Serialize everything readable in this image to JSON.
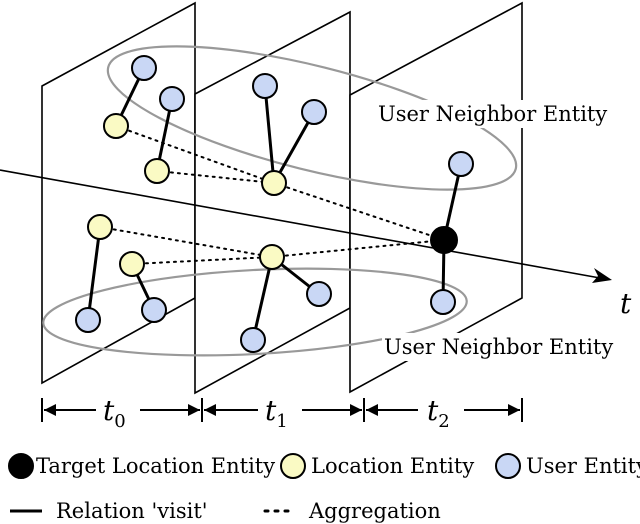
{
  "labels": {
    "user_neighbor_top": "User Neighbor Entity",
    "user_neighbor_bottom": "User Neighbor Entity",
    "axis_t": "t"
  },
  "timeline": [
    {
      "base": "t",
      "sub": "0"
    },
    {
      "base": "t",
      "sub": "1"
    },
    {
      "base": "t",
      "sub": "2"
    }
  ],
  "legend": {
    "target_location": "Target Location Entity",
    "location": "Location Entity",
    "user": "User Entity",
    "relation_visit": "Relation 'visit'",
    "aggregation": "Aggregation"
  },
  "colors": {
    "user_fill": "#c9d7f5",
    "location_fill": "#fafac4",
    "target_fill": "#000000",
    "ellipse_stroke": "#999999",
    "line": "#000000"
  }
}
